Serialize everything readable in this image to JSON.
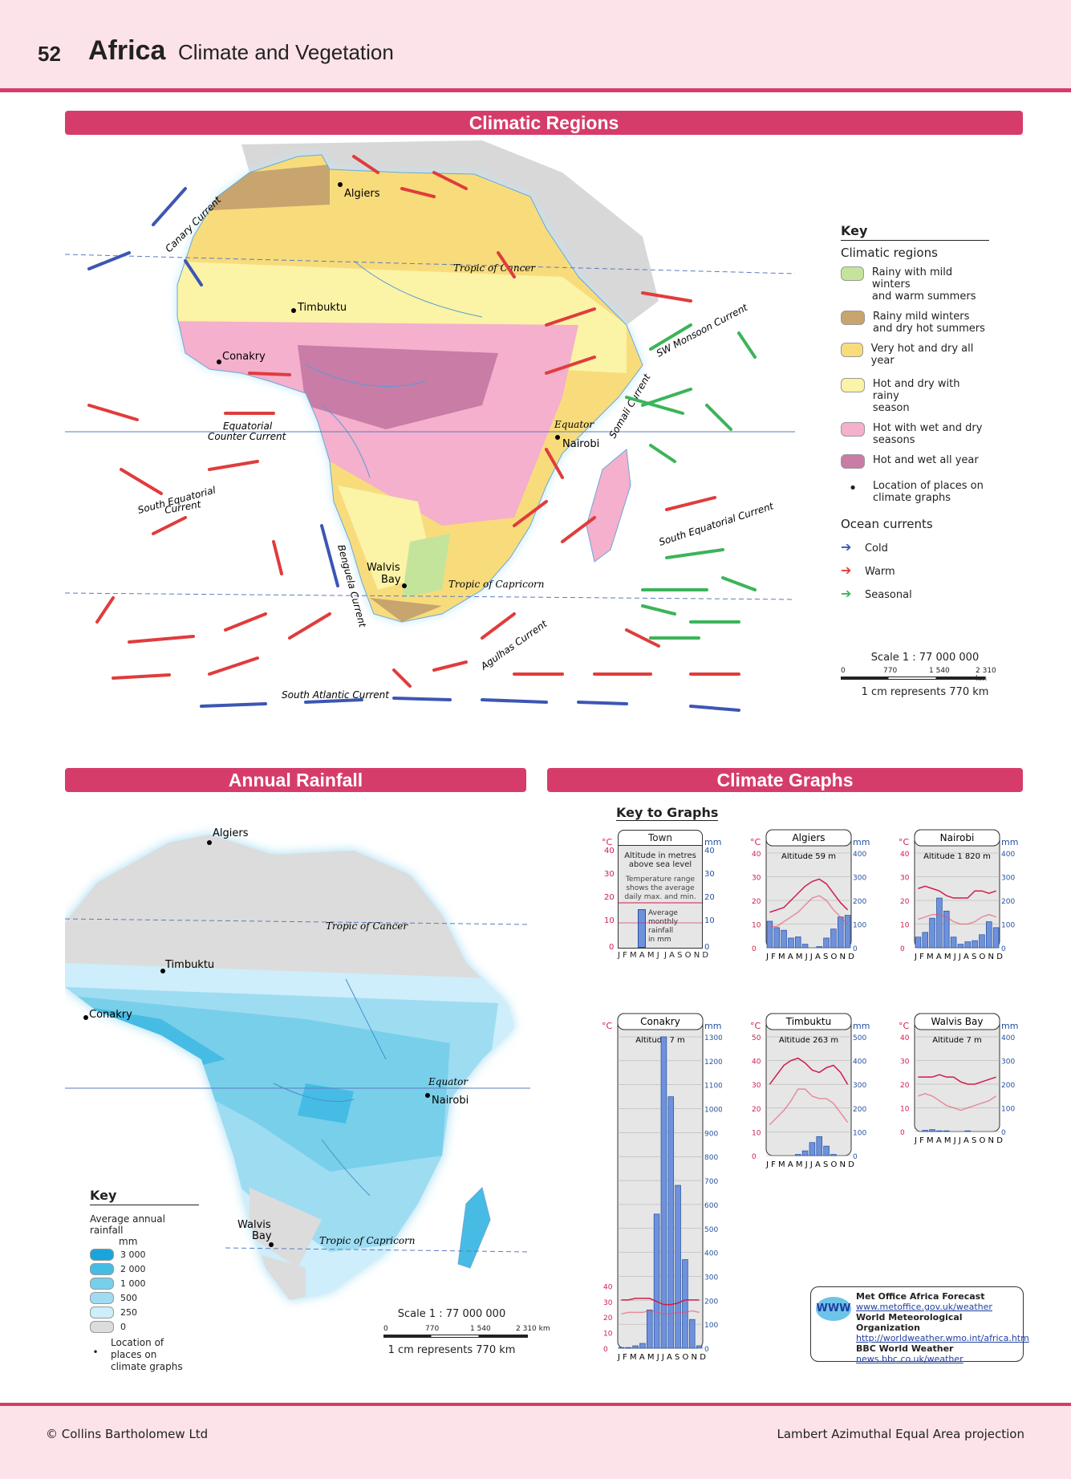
{
  "header": {
    "page_number": "52",
    "title": "Africa",
    "subtitle": "Climate and Vegetation"
  },
  "sections": {
    "climatic_regions": "Climatic Regions",
    "annual_rainfall": "Annual Rainfall",
    "climate_graphs": "Climate Graphs"
  },
  "map1": {
    "places": {
      "algiers": "Algiers",
      "timbuktu": "Timbuktu",
      "conakry": "Conakry",
      "nairobi": "Nairobi",
      "walvis": "Walvis",
      "bay": "Bay"
    },
    "lines": {
      "tropic_cancer": "Tropic of Cancer",
      "equator": "Equator",
      "tropic_capricorn": "Tropic of Capricorn"
    },
    "currents": {
      "canary": "Canary Current",
      "sw_monsoon": "SW Monsoon Current",
      "somali": "Somali Current",
      "eq_counter_1": "Equatorial",
      "eq_counter_2": "Counter Current",
      "south_eq_1": "South Equatorial",
      "south_eq_2": "Current",
      "south_eq_east": "South Equatorial Current",
      "benguela": "Benguela Current",
      "agulhas": "Agulhas Current",
      "south_atlantic": "South Atlantic Current"
    },
    "colors": {
      "rainy_mild": "#c4e49c",
      "rainy_mild_dry": "#c8a46e",
      "very_hot_dry": "#f8dc7c",
      "hot_dry_rainy": "#fbf3a6",
      "hot_wet_dry": "#f4b0cc",
      "hot_wet": "#c87ca6",
      "cold": "#3c56b4",
      "warm": "#e03c3c",
      "seasonal": "#3cb45a"
    }
  },
  "key1": {
    "title": "Key",
    "climatic_regions": "Climatic regions",
    "items": [
      {
        "line1": "Rainy with mild winters",
        "line2": "and warm summers",
        "color": "#c4e49c"
      },
      {
        "line1": "Rainy mild winters",
        "line2": "and dry hot summers",
        "color": "#c8a46e"
      },
      {
        "line1": "Very hot and dry all year",
        "line2": "",
        "color": "#f8dc7c"
      },
      {
        "line1": "Hot and dry with rainy",
        "line2": "season",
        "color": "#fbf3a6"
      },
      {
        "line1": "Hot with wet and dry",
        "line2": "seasons",
        "color": "#f4b0cc"
      },
      {
        "line1": "Hot and wet all year",
        "line2": "",
        "color": "#c87ca6"
      }
    ],
    "location_1": "Location of places on",
    "location_2": "climate graphs",
    "ocean_currents": "Ocean currents",
    "cold": "Cold",
    "warm": "Warm",
    "seasonal": "Seasonal",
    "scale": "Scale 1 : 77 000 000",
    "s0": "0",
    "s1": "770",
    "s2": "1 540",
    "s3": "2 310 km",
    "cm": "1 cm represents 770 km"
  },
  "key2": {
    "title": "Key",
    "avg": "Average annual rainfall",
    "mm": "mm",
    "items": [
      {
        "label": "3 000",
        "color": "#1aa4dc"
      },
      {
        "label": "2 000",
        "color": "#46bce4"
      },
      {
        "label": "1 000",
        "color": "#78cfea"
      },
      {
        "label": "500",
        "color": "#9edcf2"
      },
      {
        "label": "250",
        "color": "#cdeefa"
      },
      {
        "label": "0",
        "color": "#dcdcdc"
      }
    ],
    "loc1": "Location of",
    "loc2": "places on",
    "loc3": "climate graphs",
    "scale": "Scale 1 : 77 000 000",
    "s0": "0",
    "s1": "770",
    "s2": "1 540",
    "s3": "2 310 km",
    "cm": "1 cm represents 770 km"
  },
  "graphs": {
    "key_title": "Key to Graphs",
    "deg": "°C",
    "mm": "mm",
    "months": "J F M A M J  J A S O N D",
    "town": "Town",
    "alt_key_1": "Altitude in metres",
    "alt_key_2": "above sea level",
    "temp_key_1": "Temperature range",
    "temp_key_2": "shows the average",
    "temp_key_3": "daily max. and min.",
    "rain_key_1": "Average",
    "rain_key_2": "monthly",
    "rain_key_3": "rainfall",
    "rain_key_4": "in mm"
  },
  "chart_data": [
    {
      "type": "bar",
      "title": "Algiers",
      "subtitle": "Altitude 59 m",
      "categories": [
        "J",
        "F",
        "M",
        "A",
        "M",
        "J",
        "J",
        "A",
        "S",
        "O",
        "N",
        "D"
      ],
      "rainfall_mm": [
        112,
        85,
        74,
        41,
        46,
        15,
        0,
        5,
        41,
        79,
        130,
        137
      ],
      "temp_max": [
        15,
        16,
        17,
        20,
        23,
        26,
        28,
        29,
        27,
        23,
        19,
        16
      ],
      "temp_min": [
        9,
        9,
        11,
        13,
        15,
        18,
        21,
        22,
        20,
        16,
        13,
        10
      ],
      "ylim_temp": [
        0,
        40
      ],
      "ylim_rain": [
        0,
        400
      ]
    },
    {
      "type": "bar",
      "title": "Nairobi",
      "subtitle": "Altitude 1 820 m",
      "categories": [
        "J",
        "F",
        "M",
        "A",
        "M",
        "J",
        "J",
        "A",
        "S",
        "O",
        "N",
        "D"
      ],
      "rainfall_mm": [
        45,
        65,
        125,
        210,
        155,
        45,
        15,
        25,
        30,
        55,
        110,
        85
      ],
      "temp_max": [
        25,
        26,
        25,
        24,
        22,
        21,
        21,
        21,
        24,
        24,
        23,
        24
      ],
      "temp_min": [
        12,
        13,
        14,
        14,
        13,
        11,
        10,
        10,
        11,
        13,
        14,
        13
      ],
      "ylim_temp": [
        0,
        40
      ],
      "ylim_rain": [
        0,
        400
      ]
    },
    {
      "type": "bar",
      "title": "Conakry",
      "subtitle": "Altitude 7 m",
      "categories": [
        "J",
        "F",
        "M",
        "A",
        "M",
        "J",
        "J",
        "A",
        "S",
        "O",
        "N",
        "D"
      ],
      "rainfall_mm": [
        3,
        3,
        10,
        20,
        160,
        560,
        1300,
        1050,
        680,
        370,
        120,
        10
      ],
      "temp_max": [
        31,
        31,
        32,
        32,
        32,
        30,
        28,
        28,
        29,
        31,
        31,
        31
      ],
      "temp_min": [
        22,
        23,
        23,
        23,
        24,
        23,
        22,
        22,
        23,
        23,
        24,
        23
      ],
      "ylim_temp": [
        0,
        40
      ],
      "ylim_rain": [
        0,
        1300
      ]
    },
    {
      "type": "bar",
      "title": "Timbuktu",
      "subtitle": "Altitude 263 m",
      "categories": [
        "J",
        "F",
        "M",
        "A",
        "M",
        "J",
        "J",
        "A",
        "S",
        "O",
        "N",
        "D"
      ],
      "rainfall_mm": [
        0,
        0,
        0,
        0,
        5,
        20,
        55,
        80,
        40,
        5,
        0,
        0
      ],
      "temp_max": [
        30,
        34,
        38,
        40,
        41,
        39,
        36,
        35,
        37,
        38,
        35,
        30
      ],
      "temp_min": [
        13,
        16,
        19,
        23,
        28,
        28,
        25,
        24,
        24,
        22,
        18,
        14
      ],
      "ylim_temp": [
        0,
        50
      ],
      "ylim_rain": [
        0,
        500
      ]
    },
    {
      "type": "bar",
      "title": "Walvis Bay",
      "subtitle": "Altitude 7 m",
      "categories": [
        "J",
        "F",
        "M",
        "A",
        "M",
        "J",
        "J",
        "A",
        "S",
        "O",
        "N",
        "D"
      ],
      "rainfall_mm": [
        0,
        5,
        8,
        3,
        3,
        0,
        0,
        3,
        0,
        0,
        0,
        0
      ],
      "temp_max": [
        23,
        23,
        23,
        24,
        23,
        23,
        21,
        20,
        20,
        21,
        22,
        23
      ],
      "temp_min": [
        15,
        16,
        15,
        13,
        11,
        10,
        9,
        10,
        11,
        12,
        13,
        15
      ],
      "ylim_temp": [
        0,
        40
      ],
      "ylim_rain": [
        0,
        400
      ]
    }
  ],
  "www": {
    "icon": "WWW",
    "l1": "Met Office Africa Forecast",
    "u1": "www.metoffice.gov.uk/weather",
    "l2": "World Meteorological Organization",
    "u2": "http://worldweather.wmo.int/africa.htm",
    "l3": "BBC World Weather",
    "u3": "news.bbc.co.uk/weather"
  },
  "footer": {
    "copyright": "© Collins Bartholomew Ltd",
    "projection": "Lambert Azimuthal Equal Area projection"
  }
}
